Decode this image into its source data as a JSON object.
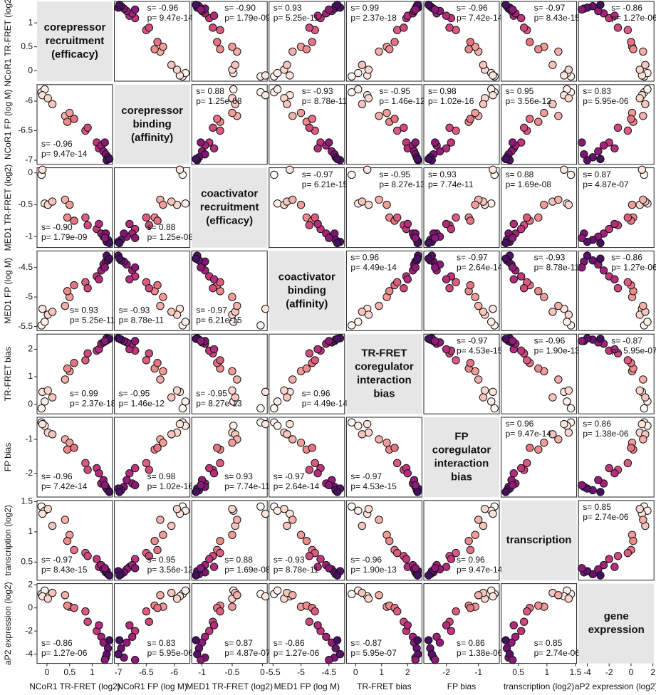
{
  "chart_data": {
    "type": "scatter_matrix",
    "variables": [
      {
        "label": "NCoR1 TR-FRET (log2)",
        "title": [
          "corepressor",
          "recruitment",
          "(efficacy)"
        ],
        "lim": [
          -0.22,
          1.45
        ],
        "ticks": [
          0,
          0.5,
          1
        ],
        "values": [
          -0.12,
          -0.05,
          -0.1,
          0.02,
          0.12,
          0.4,
          0.5,
          0.45,
          0.6,
          0.85,
          0.9,
          1.1,
          1.15,
          1.2,
          1.25,
          1.3,
          1.35,
          1.32,
          1.38,
          1.28
        ]
      },
      {
        "label": "NCoR1 FP (log M)",
        "title": [
          "corepressor",
          "binding",
          "(affinity)"
        ],
        "lim": [
          -7.07,
          -5.72
        ],
        "ticks": [
          -7,
          -6.5,
          -6
        ],
        "values": [
          -5.85,
          -5.8,
          -5.9,
          -5.95,
          -6.05,
          -6.25,
          -6.2,
          -6.35,
          -6.3,
          -6.5,
          -6.45,
          -6.7,
          -6.8,
          -6.75,
          -6.85,
          -6.9,
          -6.95,
          -7.0,
          -6.98,
          -6.7
        ]
      },
      {
        "label": "MED1 TR-FRET (log2)",
        "title": [
          "coactivator",
          "recruitment",
          "(efficacy)"
        ],
        "lim": [
          -1.17,
          0.08
        ],
        "ticks": [
          -1,
          -0.5,
          0
        ],
        "values": [
          -0.03,
          -0.48,
          0.05,
          -0.5,
          -0.45,
          -0.42,
          -0.5,
          -0.7,
          -0.75,
          -0.7,
          -0.82,
          -0.88,
          -0.8,
          -0.95,
          -1.0,
          -0.95,
          -1.05,
          -1.08,
          -1.1,
          -1.02
        ]
      },
      {
        "label": "MED1 FP (log M)",
        "title": [
          "coactivator",
          "binding",
          "(affinity)"
        ],
        "lim": [
          -5.57,
          -4.22
        ],
        "ticks": [
          -5.5,
          -5,
          -4.5
        ],
        "values": [
          -5.48,
          -5.42,
          -5.2,
          -5.3,
          -5.25,
          -5.15,
          -5.0,
          -4.9,
          -4.8,
          -4.75,
          -4.85,
          -4.65,
          -4.7,
          -4.55,
          -4.45,
          -4.4,
          -4.38,
          -4.3,
          -4.35,
          -4.5
        ]
      },
      {
        "label": "TR-FRET bias",
        "title": [
          "TR-FRET",
          "coregulator",
          "interaction",
          "bias"
        ],
        "lim": [
          -0.35,
          2.55
        ],
        "ticks": [
          0,
          1,
          2
        ],
        "values": [
          -0.15,
          0.1,
          0.45,
          0.5,
          0.25,
          0.9,
          1.2,
          1.3,
          1.5,
          1.6,
          1.85,
          1.95,
          2.0,
          2.2,
          2.25,
          2.3,
          2.35,
          2.4,
          2.38,
          2.3
        ]
      },
      {
        "label": "FP bias",
        "title": [
          "FP",
          "coregulator",
          "interaction",
          "bias"
        ],
        "lim": [
          -2.7,
          -0.35
        ],
        "ticks": [
          -2,
          -1
        ],
        "values": [
          -0.5,
          -0.6,
          -0.55,
          -0.8,
          -0.85,
          -1.0,
          -1.1,
          -1.3,
          -1.25,
          -1.7,
          -1.9,
          -1.85,
          -2.0,
          -2.3,
          -2.2,
          -2.4,
          -2.5,
          -2.45,
          -2.55,
          -2.35
        ]
      },
      {
        "label": "transcription (log2)",
        "title": [
          "transcription"
        ],
        "lim": [
          0.2,
          1.52
        ],
        "ticks": [
          0.5,
          1,
          1.5
        ],
        "values": [
          1.42,
          1.35,
          1.3,
          1.38,
          1.1,
          1.2,
          0.95,
          0.85,
          0.7,
          0.65,
          0.6,
          0.55,
          0.42,
          0.45,
          0.38,
          0.33,
          0.3,
          0.35,
          0.28,
          0.4
        ]
      },
      {
        "label": "aP2 expression (log2)",
        "title": [
          "gene",
          "expression"
        ],
        "lim": [
          -4.8,
          2.1
        ],
        "ticks": [
          -4,
          -2,
          0,
          2
        ],
        "values": [
          1.2,
          1.5,
          1.0,
          0.8,
          1.3,
          1.1,
          0.1,
          0.2,
          0.0,
          -0.3,
          -1.2,
          -2.0,
          -1.5,
          -2.5,
          -3.0,
          -4.3,
          -3.5,
          -4.0,
          -2.8,
          -4.5
        ]
      }
    ],
    "colors": [
      "#fff8f2",
      "#fff1ea",
      "#fde4dc",
      "#fbd6cf",
      "#f8c5bd",
      "#f4b0a8",
      "#f19c98",
      "#ec8a8c",
      "#e57384",
      "#dc5c80",
      "#d04a7f",
      "#c2367c",
      "#b42d7c",
      "#a4227a",
      "#941b79",
      "#7f1576",
      "#6b1271",
      "#581169",
      "#44105f",
      "#8d1a78"
    ],
    "stats": [
      [
        null,
        [
          "s= -0.96",
          "p= 9.47e-14"
        ],
        [
          "s= -0.90",
          "p= 1.79e-09"
        ],
        [
          "s= 0.93",
          "p= 5.25e-11"
        ],
        [
          "s= 0.99",
          "p= 2.37e-18"
        ],
        [
          "s= -0.96",
          "p= 7.42e-14"
        ],
        [
          "s= -0.97",
          "p= 8.43e-15"
        ],
        [
          "s= -0.86",
          "p= 1.27e-06"
        ]
      ],
      [
        [
          "s= -0.96",
          "p= 9.47e-14"
        ],
        null,
        [
          "s= 0.88",
          "p= 1.25e-08"
        ],
        [
          "s= -0.93",
          "p= 8.78e-11"
        ],
        [
          "s= -0.95",
          "p= 1.46e-12"
        ],
        [
          "s= 0.98",
          "p= 1.02e-16"
        ],
        [
          "s= 0.95",
          "p= 3.56e-12"
        ],
        [
          "s= 0.83",
          "p= 5.95e-06"
        ]
      ],
      [
        [
          "s= -0.90",
          "p= 1.79e-09"
        ],
        [
          "s= 0.88",
          "p= 1.25e-08"
        ],
        null,
        [
          "s= -0.97",
          "p= 6.21e-15"
        ],
        [
          "s= -0.95",
          "p= 8.27e-13"
        ],
        [
          "s= 0.93",
          "p= 7.74e-11"
        ],
        [
          "s= 0.88",
          "p= 1.69e-08"
        ],
        [
          "s= 0.87",
          "p= 4.87e-07"
        ]
      ],
      [
        [
          "s= 0.93",
          "p= 5.25e-11"
        ],
        [
          "s= -0.93",
          "p= 8.78e-11"
        ],
        [
          "s= -0.97",
          "p= 6.21e-15"
        ],
        null,
        [
          "s= 0.96",
          "p= 4.49e-14"
        ],
        [
          "s= -0.97",
          "p= 2.64e-14"
        ],
        [
          "s= -0.93",
          "p= 8.78e-11"
        ],
        [
          "s= -0.86",
          "p= 1.27e-06"
        ]
      ],
      [
        [
          "s= 0.99",
          "p= 2.37e-18"
        ],
        [
          "s= -0.95",
          "p= 1.46e-12"
        ],
        [
          "s= -0.95",
          "p= 8.27e-13"
        ],
        [
          "s= 0.96",
          "p= 4.49e-14"
        ],
        null,
        [
          "s= -0.97",
          "p= 4.53e-15"
        ],
        [
          "s= -0.96",
          "p= 1.90e-13"
        ],
        [
          "s= -0.87",
          "p= 5.95e-07"
        ]
      ],
      [
        [
          "s= -0.96",
          "p= 7.42e-14"
        ],
        [
          "s= 0.98",
          "p= 1.02e-16"
        ],
        [
          "s= 0.93",
          "p= 7.74e-11"
        ],
        [
          "s= -0.97",
          "p= 2.64e-14"
        ],
        [
          "s= -0.97",
          "p= 4.53e-15"
        ],
        null,
        [
          "s= 0.96",
          "p= 9.47e-14"
        ],
        [
          "s= 0.86",
          "p= 1.38e-06"
        ]
      ],
      [
        [
          "s= -0.97",
          "p= 8.43e-15"
        ],
        [
          "s= 0.95",
          "p= 3.56e-12"
        ],
        [
          "s= 0.88",
          "p= 1.69e-08"
        ],
        [
          "s= -0.93",
          "p= 8.78e-11"
        ],
        [
          "s= -0.96",
          "p= 1.90e-13"
        ],
        [
          "s= 0.96",
          "p= 9.47e-14"
        ],
        null,
        [
          "s= 0.85",
          "p= 2.74e-06"
        ]
      ],
      [
        [
          "s= -0.86",
          "p= 1.27e-06"
        ],
        [
          "s= 0.83",
          "p= 5.95e-06"
        ],
        [
          "s= 0.87",
          "p= 4.87e-07"
        ],
        [
          "s= -0.86",
          "p= 1.27e-06"
        ],
        [
          "s= -0.87",
          "p= 5.95e-07"
        ],
        [
          "s= 0.86",
          "p= 1.38e-06"
        ],
        [
          "s= 0.85",
          "p= 2.74e-06"
        ],
        null
      ]
    ]
  }
}
